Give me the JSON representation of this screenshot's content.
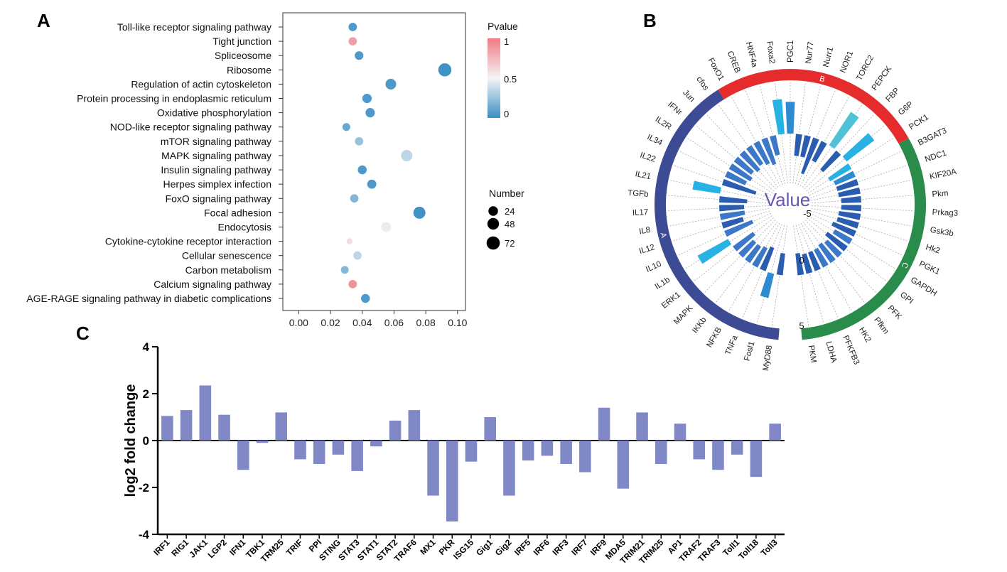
{
  "panel_labels": {
    "a": "A",
    "b": "B",
    "c": "C"
  },
  "chart_data": [
    {
      "id": "A",
      "type": "scatter",
      "subtype": "bubble",
      "xlim": [
        -0.01,
        0.105
      ],
      "xticks": [
        "0.00",
        "0.02",
        "0.04",
        "0.06",
        "0.08",
        "0.10"
      ],
      "xtick_values": [
        0.0,
        0.02,
        0.04,
        0.06,
        0.08,
        0.1
      ],
      "categories": [
        "Toll-like receptor signaling pathway",
        "Tight junction",
        "Spliceosome",
        "Ribosome",
        "Regulation of actin cytoskeleton",
        "Protein processing in endoplasmic reticulum",
        "Oxidative phosphorylation",
        "NOD-like receptor signaling pathway",
        "mTOR signaling pathway",
        "MAPK signaling pathway",
        "Insulin signaling pathway",
        "Herpes simplex infection",
        "FoxO signaling pathway",
        "Focal adhesion",
        "Endocytosis",
        "Cytokine-cytokine receptor interaction",
        "Cellular senescence",
        "Carbon metabolism",
        "Calcium signaling pathway",
        "AGE-RAGE signaling pathway in diabetic complications"
      ],
      "points": [
        {
          "x": 0.034,
          "pvalue": 0.05,
          "number": 14
        },
        {
          "x": 0.034,
          "pvalue": 0.85,
          "number": 14
        },
        {
          "x": 0.038,
          "pvalue": 0.05,
          "number": 16
        },
        {
          "x": 0.092,
          "pvalue": 0.02,
          "number": 70
        },
        {
          "x": 0.058,
          "pvalue": 0.05,
          "number": 36
        },
        {
          "x": 0.043,
          "pvalue": 0.05,
          "number": 22
        },
        {
          "x": 0.045,
          "pvalue": 0.05,
          "number": 22
        },
        {
          "x": 0.03,
          "pvalue": 0.12,
          "number": 10
        },
        {
          "x": 0.038,
          "pvalue": 0.25,
          "number": 14
        },
        {
          "x": 0.068,
          "pvalue": 0.35,
          "number": 44
        },
        {
          "x": 0.04,
          "pvalue": 0.05,
          "number": 18
        },
        {
          "x": 0.046,
          "pvalue": 0.05,
          "number": 20
        },
        {
          "x": 0.035,
          "pvalue": 0.2,
          "number": 14
        },
        {
          "x": 0.076,
          "pvalue": 0.02,
          "number": 54
        },
        {
          "x": 0.055,
          "pvalue": 0.55,
          "number": 26
        },
        {
          "x": 0.032,
          "pvalue": 0.6,
          "number": 2
        },
        {
          "x": 0.037,
          "pvalue": 0.35,
          "number": 14
        },
        {
          "x": 0.029,
          "pvalue": 0.2,
          "number": 10
        },
        {
          "x": 0.034,
          "pvalue": 0.9,
          "number": 14
        },
        {
          "x": 0.042,
          "pvalue": 0.05,
          "number": 18
        }
      ],
      "color_legend": {
        "title": "Pvalue",
        "ticks": [
          "1",
          "0.5",
          "0"
        ],
        "low_color": "#3a8fc4",
        "mid_color": "#f4f4f4",
        "high_color": "#f07a84"
      },
      "size_legend": {
        "title": "Number",
        "entries": [
          {
            "label": "24",
            "value": 24
          },
          {
            "label": "48",
            "value": 48
          },
          {
            "label": "72",
            "value": 72
          }
        ]
      }
    },
    {
      "id": "B",
      "type": "bar",
      "subtype": "circular",
      "center_label": "Value",
      "ylim": [
        -5,
        5
      ],
      "scale_labels": [
        "-5",
        "0",
        "5"
      ],
      "groups": [
        {
          "name": "A",
          "color": "#3d4a94"
        },
        {
          "name": "B",
          "color": "#e52b2b"
        },
        {
          "name": "C",
          "color": "#2a8c4a"
        }
      ],
      "categories": [
        "MyD88",
        "Fosl1",
        "TNFa",
        "NFKB",
        "IKKb",
        "MAPK",
        "ERK1",
        "IL1b",
        "IL10",
        "IL12",
        "IL8",
        "IL17",
        "TGFb",
        "IL21",
        "IL22",
        "IL34",
        "IL2R",
        "IFNr",
        "Jun",
        "cfos",
        "FoxO1",
        "CREB",
        "HNF4a",
        "Foxa2",
        "PGC1",
        "Nur77",
        "Nurr1",
        "NOR1",
        "TORC2",
        "PEPCK",
        "FBP",
        "G6P",
        "PCK1",
        "B3GAT3",
        "NDC1",
        "KIF20A",
        "Pkm",
        "Prkag3",
        "Gsk3b",
        "Hk2",
        "PGK1",
        "GAPDH",
        "GPI",
        "PFK",
        "Pfkm",
        "HK2",
        "PFKFB3",
        "LDHA",
        "PKM"
      ],
      "category_groups": [
        "A",
        "A",
        "A",
        "A",
        "A",
        "A",
        "A",
        "A",
        "A",
        "A",
        "A",
        "A",
        "A",
        "A",
        "A",
        "A",
        "A",
        "A",
        "A",
        "A",
        "B",
        "B",
        "B",
        "B",
        "B",
        "B",
        "B",
        "B",
        "B",
        "B",
        "B",
        "B",
        "B",
        "C",
        "C",
        "C",
        "C",
        "C",
        "C",
        "C",
        "C",
        "C",
        "C",
        "C",
        "C",
        "C",
        "C",
        "C",
        "C"
      ],
      "values": [
        -2.2,
        2.5,
        -2.5,
        -2.2,
        -2.0,
        -2.0,
        -2.5,
        3.5,
        -3.0,
        -2.2,
        -2.5,
        -2.5,
        -2.8,
        2.8,
        -3.5,
        -2.2,
        -2.5,
        -2.2,
        -2.5,
        -2.2,
        -2.5,
        -2.8,
        -2.0,
        3.5,
        3.2,
        -2.2,
        -2.2,
        -3.8,
        -2.2,
        4.0,
        -2.5,
        3.5,
        -2.5,
        -2.2,
        -2.2,
        -2.2,
        -2.0,
        -2.0,
        -2.2,
        -2.2,
        -2.5,
        -2.0,
        -2.5,
        -2.0,
        -2.2,
        -2.0,
        -2.0,
        -2.0,
        -2.2
      ],
      "colors": [
        "#2a5cb0",
        "#2e8bd2",
        "#2a5cb0",
        "#3c78c8",
        "#3c78c8",
        "#3c78c8",
        "#3c78c8",
        "#27b2e3",
        "#3c78c8",
        "#2a5cb0",
        "#3c78c8",
        "#2a5cb0",
        "#2a5cb0",
        "#27b2e3",
        "#2a5cb0",
        "#3c78c8",
        "#3c78c8",
        "#3c78c8",
        "#3c78c8",
        "#3c78c8",
        "#3c78c8",
        "#3c78c8",
        "#3c78c8",
        "#27b2e3",
        "#2e8bd2",
        "#2a5cb0",
        "#2a5cb0",
        "#2a5cb0",
        "#2a5cb0",
        "#4fc2d8",
        "#2a5cb0",
        "#27b2e3",
        "#27b2e3",
        "#2e8bd2",
        "#2a5cb0",
        "#2a5cb0",
        "#2a5cb0",
        "#2a5cb0",
        "#2a5cb0",
        "#2a5cb0",
        "#2a5cb0",
        "#3c78c8",
        "#2a5cb0",
        "#3c78c8",
        "#3c78c8",
        "#3c78c8",
        "#2a5cb0",
        "#2a5cb0",
        "#2a5cb0"
      ]
    },
    {
      "id": "C",
      "type": "bar",
      "ylabel": "log2 fold change",
      "ylim": [
        -4,
        4
      ],
      "yticks": [
        "4",
        "2",
        "0",
        "-2",
        "-4"
      ],
      "ytick_values": [
        4,
        2,
        0,
        -2,
        -4
      ],
      "bar_color": "#8088c6",
      "categories": [
        "IRF1",
        "RIG1",
        "JAK1",
        "LGP2",
        "IFN1",
        "TBK1",
        "TRM25",
        "TRIF",
        "PPI",
        "STING",
        "STAT3",
        "STAT1",
        "STAT2",
        "TRAF6",
        "MX1",
        "PKR",
        "ISG15",
        "Gig1",
        "Gig2",
        "IRF5",
        "IRF6",
        "IRF3",
        "IRF7",
        "IRF9",
        "MDA5",
        "TRIM21",
        "TRIM25",
        "AP1",
        "TRAF2",
        "TRAF3",
        "Toll1",
        "Toll18",
        "Toll3"
      ],
      "values": [
        1.05,
        1.3,
        2.35,
        1.1,
        -1.25,
        -0.1,
        1.2,
        -0.8,
        -1.0,
        -0.6,
        -1.3,
        -0.25,
        0.85,
        1.3,
        -2.35,
        -3.45,
        -0.9,
        1.0,
        -2.35,
        -0.85,
        -0.65,
        -1.0,
        -1.35,
        1.4,
        -2.05,
        1.2,
        -1.0,
        0.72,
        -0.8,
        -1.25,
        -0.6,
        -1.55,
        0.72
      ]
    }
  ]
}
